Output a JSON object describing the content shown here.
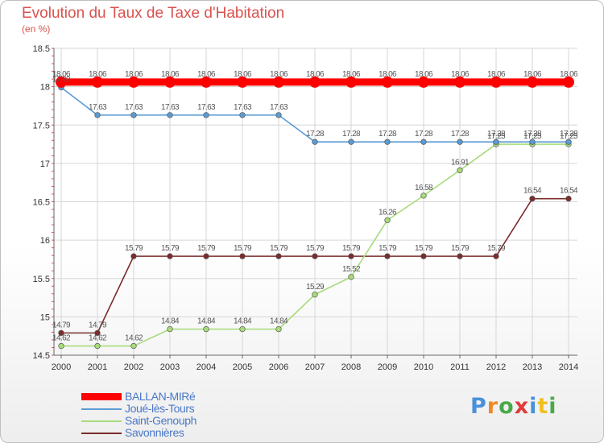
{
  "title": "Evolution du Taux de Taxe d'Habitation",
  "subtitle": "(en %)",
  "logo": {
    "text": "Proxiti",
    "letter_colors": [
      "#4a90d9",
      "#f08a24",
      "#4aa84a",
      "#e03a3a",
      "#4a90d9",
      "#f0c020",
      "#4aa84a"
    ]
  },
  "chart_data": {
    "type": "line",
    "title": "Evolution du Taux de Taxe d'Habitation",
    "ylabel": "(en %)",
    "xlabel": "",
    "ylim": [
      14.5,
      18.5
    ],
    "yticks": [
      "14.5",
      "15",
      "15.5",
      "16",
      "16.5",
      "17",
      "17.5",
      "18",
      "18.5"
    ],
    "x": [
      "2000",
      "2001",
      "2002",
      "2003",
      "2004",
      "2005",
      "2006",
      "2007",
      "2008",
      "2009",
      "2010",
      "2011",
      "2012",
      "2013",
      "2014"
    ],
    "grid": true,
    "legend_position": "bottom-left",
    "series": [
      {
        "name": "BALLAN-MIRé",
        "color": "#ff0000",
        "values": [
          18.06,
          18.06,
          18.06,
          18.06,
          18.06,
          18.06,
          18.06,
          18.06,
          18.06,
          18.06,
          18.06,
          18.06,
          18.06,
          18.06,
          18.06
        ],
        "labels": [
          "18.06",
          "18.06",
          "18.06",
          "18.06",
          "18.06",
          "18.06",
          "18.06",
          "18.06",
          "18.06",
          "18.06",
          "18.06",
          "18.06",
          "18.06",
          "18.06",
          "18.06"
        ]
      },
      {
        "name": "Joué-lès-Tours",
        "color": "#5b9bd5",
        "values": [
          17.99,
          17.63,
          17.63,
          17.63,
          17.63,
          17.63,
          17.63,
          17.28,
          17.28,
          17.28,
          17.28,
          17.28,
          17.28,
          17.28,
          17.28
        ],
        "labels": [
          "17.99",
          "17.63",
          "17.63",
          "17.63",
          "17.63",
          "17.63",
          "17.63",
          "17.28",
          "17.28",
          "17.28",
          "17.28",
          "17.28",
          "17.28",
          "17.28",
          "17.28"
        ]
      },
      {
        "name": "Saint-Genouph",
        "color": "#a6dc7a",
        "values": [
          14.62,
          14.62,
          14.62,
          14.84,
          14.84,
          14.84,
          14.84,
          15.29,
          15.52,
          16.26,
          16.58,
          16.91,
          17.25,
          17.25,
          17.25
        ],
        "labels": [
          "14.62",
          "14.62",
          "14.62",
          "14.84",
          "14.84",
          "14.84",
          "14.84",
          "15.29",
          "15.52",
          "16.26",
          "16.58",
          "16.91",
          "17.25",
          "17.25",
          "17.25"
        ]
      },
      {
        "name": "Savonnières",
        "color": "#7b2c2c",
        "values": [
          14.79,
          14.79,
          15.79,
          15.79,
          15.79,
          15.79,
          15.79,
          15.79,
          15.79,
          15.79,
          15.79,
          15.79,
          15.79,
          16.54,
          16.54
        ],
        "labels": [
          "14.79",
          "14.79",
          "15.79",
          "15.79",
          "15.79",
          "15.79",
          "15.79",
          "15.79",
          "15.79",
          "15.79",
          "15.79",
          "15.79",
          "15.79",
          "16.54",
          "16.54"
        ]
      }
    ]
  }
}
